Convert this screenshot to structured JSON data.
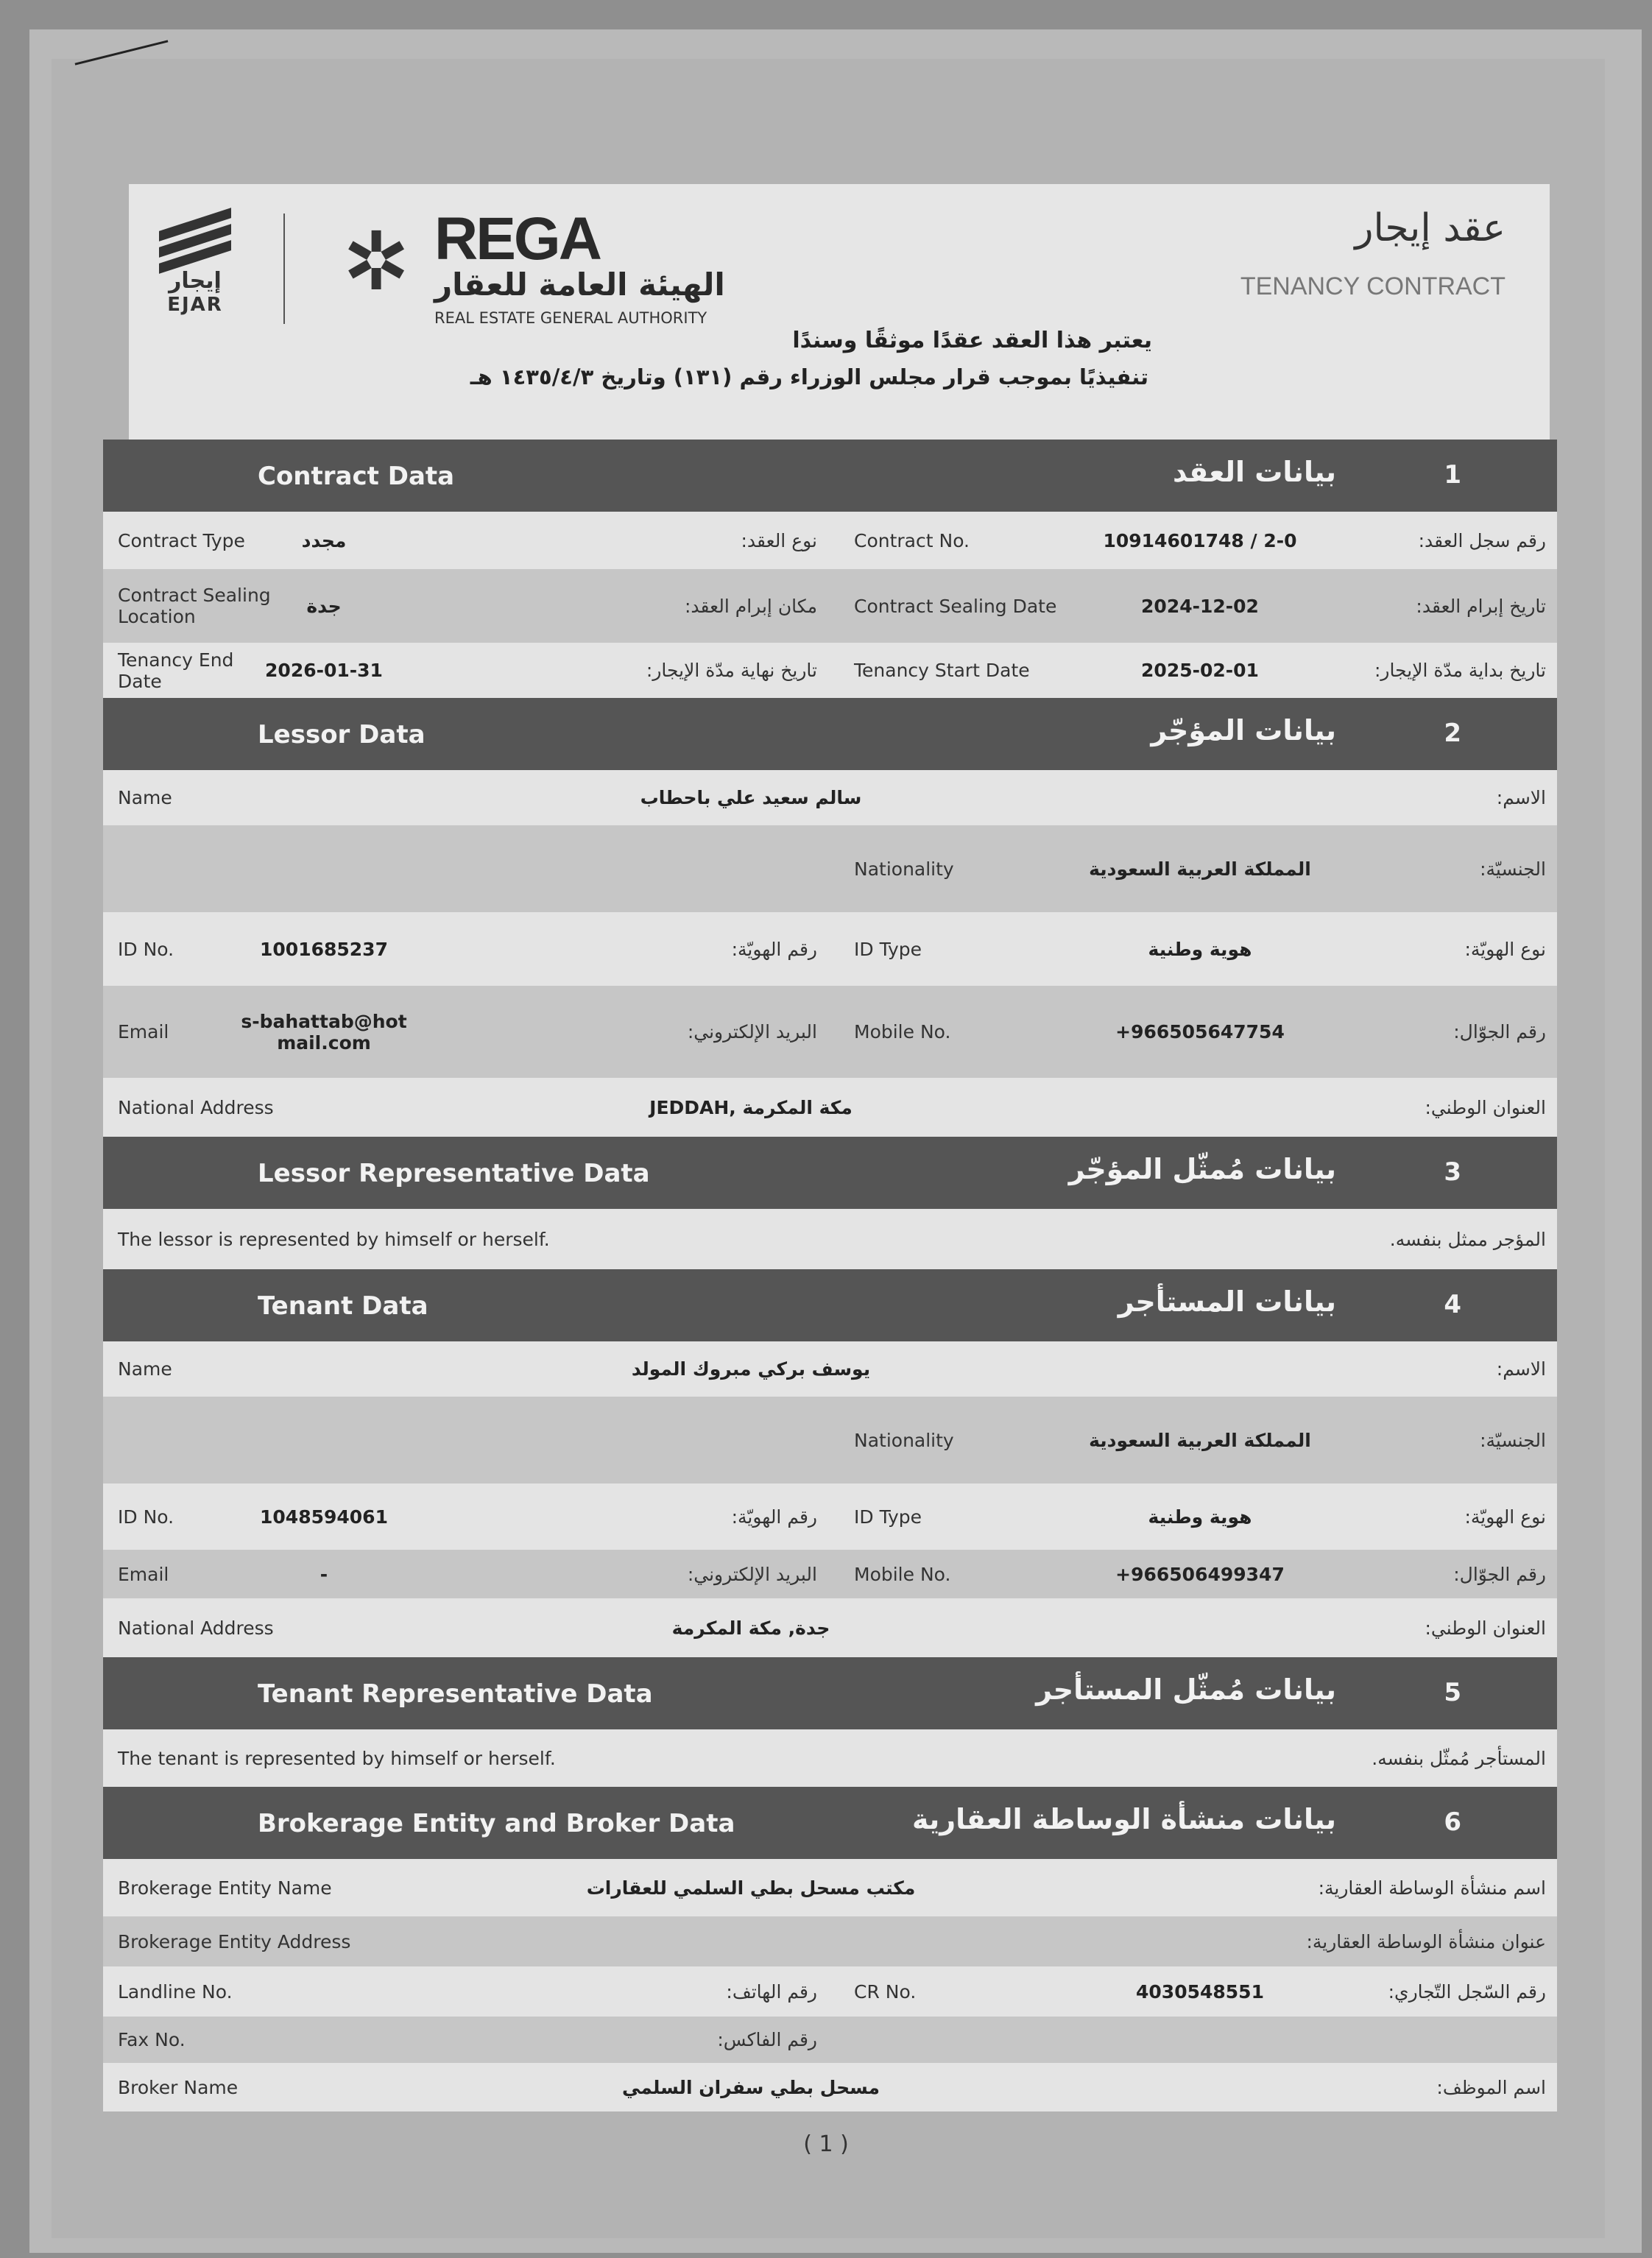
{
  "header": {
    "ejar_logo_ar": "إيجار",
    "ejar_logo_en": "EJAR",
    "rega_logo": "REGA",
    "rega_ar": "الهيئة العامة للعقار",
    "rega_en": "REAL ESTATE GENERAL AUTHORITY",
    "title_ar": "عقد إيجار",
    "title_en": "TENANCY CONTRACT",
    "declaration_1": "يعتبر هذا العقد عقدًا موثقًا وسندًا",
    "declaration_2": "تنفيذيًا بموجب قرار مجلس الوزراء رقم (١٣١) وتاريخ ١٤٣٥/٤/٣ هـ"
  },
  "sections": [
    {
      "num": "1",
      "title_en": "Contract Data",
      "title_ar": "بيانات العقد",
      "rows": [
        {
          "type": "pair",
          "left": {
            "en": "Contract Type",
            "value": "مجدد",
            "ar": "نوع العقد:"
          },
          "right": {
            "en": "Contract No.",
            "value": "10914601748 / 2-0",
            "ar": "رقم سجل العقد:"
          }
        },
        {
          "type": "pair",
          "left": {
            "en": "Contract Sealing Location",
            "value": "جدة",
            "ar": "مكان إبرام العقد:"
          },
          "right": {
            "en": "Contract Sealing Date",
            "value": "2024-12-02",
            "ar": "تاريخ إبرام العقد:"
          }
        },
        {
          "type": "pair",
          "left": {
            "en": "Tenancy End Date",
            "value": "2026-01-31",
            "ar": "تاريخ نهاية مدّة الإيجار:"
          },
          "right": {
            "en": "Tenancy Start Date",
            "value": "2025-02-01",
            "ar": "تاريخ بداية مدّة الإيجار:"
          }
        }
      ]
    },
    {
      "num": "2",
      "title_en": "Lessor Data",
      "title_ar": "بيانات المؤجّر",
      "rows": [
        {
          "type": "full",
          "field": {
            "en": "Name",
            "value": "سالم سعيد علي باحطاب",
            "ar": "الاسم:"
          }
        },
        {
          "type": "pair",
          "left": {
            "en": "",
            "value": "",
            "ar": ""
          },
          "right": {
            "en": "Nationality",
            "value": "المملكة العربية السعودية",
            "ar": "الجنسيّة:"
          }
        },
        {
          "type": "pair",
          "left": {
            "en": "ID No.",
            "value": "1001685237",
            "ar": "رقم الهويّة:"
          },
          "right": {
            "en": "ID Type",
            "value": "هوية وطنية",
            "ar": "نوع الهويّة:"
          }
        },
        {
          "type": "pair",
          "left": {
            "en": "Email",
            "value": "s-bahattab@hotmail.com",
            "ar": "البريد الإلكتروني:"
          },
          "right": {
            "en": "Mobile No.",
            "value": "+966505647754",
            "ar": "رقم الجوّال:"
          }
        },
        {
          "type": "full",
          "field": {
            "en": "National Address",
            "value": "JEDDAH, مكة المكرمة",
            "ar": "العنوان الوطني:"
          }
        }
      ]
    },
    {
      "num": "3",
      "title_en": "Lessor Representative Data",
      "title_ar": "بيانات مُمثّل المؤجّر",
      "rows": [
        {
          "type": "note",
          "en": "The lessor is represented by himself or herself.",
          "ar": "المؤجر ممثل بنفسه."
        }
      ]
    },
    {
      "num": "4",
      "title_en": "Tenant Data",
      "title_ar": "بيانات المستأجر",
      "rows": [
        {
          "type": "full",
          "field": {
            "en": "Name",
            "value": "يوسف بركي مبروك المولد",
            "ar": "الاسم:"
          }
        },
        {
          "type": "pair",
          "left": {
            "en": "",
            "value": "",
            "ar": ""
          },
          "right": {
            "en": "Nationality",
            "value": "المملكة العربية السعودية",
            "ar": "الجنسيّة:"
          }
        },
        {
          "type": "pair",
          "left": {
            "en": "ID No.",
            "value": "1048594061",
            "ar": "رقم الهويّة:"
          },
          "right": {
            "en": "ID Type",
            "value": "هوية وطنية",
            "ar": "نوع الهويّة:"
          }
        },
        {
          "type": "pair",
          "left": {
            "en": "Email",
            "value": "-",
            "ar": "البريد الإلكتروني:"
          },
          "right": {
            "en": "Mobile No.",
            "value": "+966506499347",
            "ar": "رقم الجوّال:"
          }
        },
        {
          "type": "full",
          "field": {
            "en": "National Address",
            "value": "جدة, مكة المكرمة",
            "ar": "العنوان الوطني:"
          }
        }
      ]
    },
    {
      "num": "5",
      "title_en": "Tenant Representative Data",
      "title_ar": "بيانات مُمثّل المستأجر",
      "rows": [
        {
          "type": "note",
          "en": "The tenant is represented by himself or herself.",
          "ar": "المستأجر مُمثّل بنفسه."
        }
      ]
    },
    {
      "num": "6",
      "title_en": "Brokerage Entity and Broker Data",
      "title_ar": "بيانات منشأة الوساطة العقارية",
      "rows": [
        {
          "type": "full",
          "field": {
            "en": "Brokerage Entity Name",
            "value": "مكتب مسحل بطي السلمي للعقارات",
            "ar": "اسم منشأة الوساطة العقارية:"
          }
        },
        {
          "type": "full",
          "field": {
            "en": "Brokerage Entity Address",
            "value": "",
            "ar": "عنوان منشأة الوساطة العقارية:"
          }
        },
        {
          "type": "pair",
          "left": {
            "en": "Landline No.",
            "value": "",
            "ar": "رقم الهاتف:"
          },
          "right": {
            "en": "CR No.",
            "value": "4030548551",
            "ar": "رقم السّجل التّجاري:"
          }
        },
        {
          "type": "pair",
          "left": {
            "en": "Fax No.",
            "value": "",
            "ar": "رقم الفاكس:"
          },
          "right": {
            "en": "",
            "value": "",
            "ar": ""
          }
        },
        {
          "type": "full",
          "field": {
            "en": "Broker Name",
            "value": "مسحل بطي سفران السلمي",
            "ar": "اسم الموظف:"
          }
        }
      ]
    }
  ],
  "footer": {
    "page_number": "( 1 )"
  }
}
